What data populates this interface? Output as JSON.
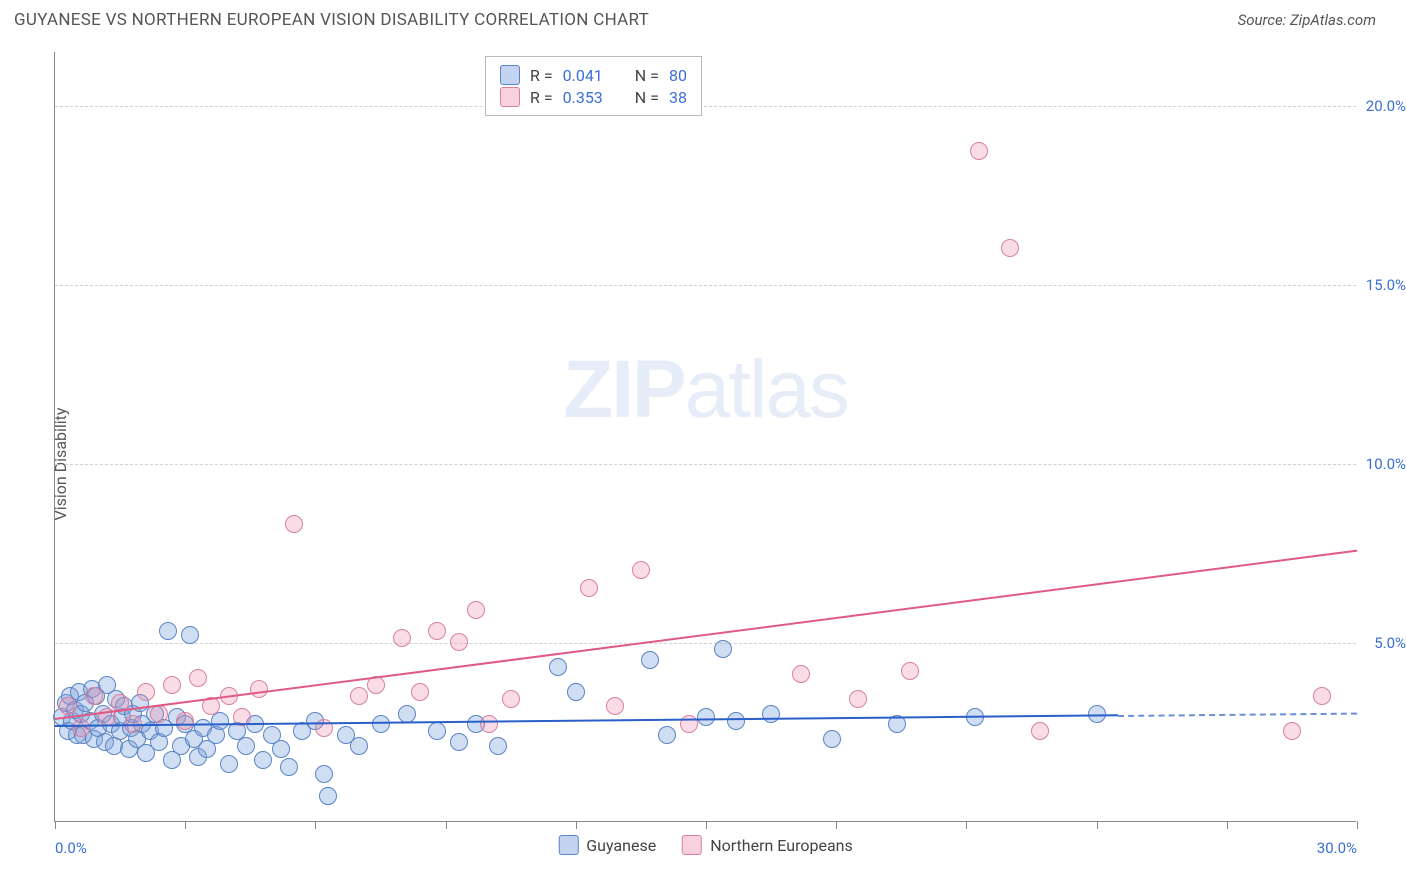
{
  "header": {
    "title": "GUYANESE VS NORTHERN EUROPEAN VISION DISABILITY CORRELATION CHART",
    "source": "Source: ZipAtlas.com"
  },
  "chart": {
    "type": "scatter",
    "ylabel": "Vision Disability",
    "watermark_bold": "ZIP",
    "watermark_light": "atlas",
    "background_color": "#ffffff",
    "grid_color": "#d0d0d0",
    "axis_color": "#888888",
    "label_color": "#555555",
    "value_color": "#3a6fd8",
    "xlim": [
      0,
      30
    ],
    "ylim": [
      0,
      21.5
    ],
    "x_ticks": [
      0,
      3,
      6,
      9,
      12,
      15,
      18,
      21,
      24,
      27,
      30
    ],
    "x_tick_labels": {
      "0": "0.0%",
      "30": "30.0%"
    },
    "y_gridlines": [
      5,
      10,
      15,
      20
    ],
    "y_tick_labels": {
      "5": "5.0%",
      "10": "10.0%",
      "15": "15.0%",
      "20": "20.0%"
    },
    "ytick_fontsize": 15,
    "xtick_fontsize": 15,
    "title_fontsize": 17,
    "label_fontsize": 16,
    "marker_size": 18,
    "marker_opacity_a": 0.35,
    "marker_opacity_b": 0.3,
    "line_width": 2,
    "series": [
      {
        "key": "a",
        "name": "Guyanese",
        "fill_color": "#78a0dc",
        "stroke_color": "#5a84c4",
        "line_color": "#2a5fc8",
        "R": "0.041",
        "N": "80",
        "trend": {
          "x1": 0,
          "y1": 2.7,
          "x2": 24.5,
          "y2": 3.0,
          "ext_x2": 30
        },
        "points": [
          [
            0.15,
            2.9
          ],
          [
            0.25,
            3.3
          ],
          [
            0.3,
            2.5
          ],
          [
            0.35,
            3.5
          ],
          [
            0.4,
            2.8
          ],
          [
            0.45,
            3.1
          ],
          [
            0.5,
            2.4
          ],
          [
            0.55,
            3.6
          ],
          [
            0.6,
            3.0
          ],
          [
            0.65,
            2.4
          ],
          [
            0.7,
            3.3
          ],
          [
            0.8,
            2.8
          ],
          [
            0.85,
            3.7
          ],
          [
            0.9,
            2.3
          ],
          [
            0.95,
            3.5
          ],
          [
            1.0,
            2.6
          ],
          [
            1.1,
            3.0
          ],
          [
            1.15,
            2.2
          ],
          [
            1.2,
            3.8
          ],
          [
            1.3,
            2.7
          ],
          [
            1.35,
            2.1
          ],
          [
            1.4,
            3.4
          ],
          [
            1.5,
            2.5
          ],
          [
            1.55,
            2.9
          ],
          [
            1.6,
            3.2
          ],
          [
            1.7,
            2.0
          ],
          [
            1.75,
            2.6
          ],
          [
            1.8,
            3.0
          ],
          [
            1.9,
            2.3
          ],
          [
            1.95,
            3.3
          ],
          [
            2.0,
            2.7
          ],
          [
            2.1,
            1.9
          ],
          [
            2.2,
            2.5
          ],
          [
            2.3,
            3.0
          ],
          [
            2.4,
            2.2
          ],
          [
            2.5,
            2.6
          ],
          [
            2.6,
            5.3
          ],
          [
            2.7,
            1.7
          ],
          [
            2.8,
            2.9
          ],
          [
            2.9,
            2.1
          ],
          [
            3.0,
            2.7
          ],
          [
            3.1,
            5.2
          ],
          [
            3.2,
            2.3
          ],
          [
            3.3,
            1.8
          ],
          [
            3.4,
            2.6
          ],
          [
            3.5,
            2.0
          ],
          [
            3.7,
            2.4
          ],
          [
            3.8,
            2.8
          ],
          [
            4.0,
            1.6
          ],
          [
            4.2,
            2.5
          ],
          [
            4.4,
            2.1
          ],
          [
            4.6,
            2.7
          ],
          [
            4.8,
            1.7
          ],
          [
            5.0,
            2.4
          ],
          [
            5.2,
            2.0
          ],
          [
            5.4,
            1.5
          ],
          [
            5.7,
            2.5
          ],
          [
            6.0,
            2.8
          ],
          [
            6.2,
            1.3
          ],
          [
            6.3,
            0.7
          ],
          [
            6.7,
            2.4
          ],
          [
            7.0,
            2.1
          ],
          [
            7.5,
            2.7
          ],
          [
            8.1,
            3.0
          ],
          [
            8.8,
            2.5
          ],
          [
            9.3,
            2.2
          ],
          [
            9.7,
            2.7
          ],
          [
            10.2,
            2.1
          ],
          [
            11.6,
            4.3
          ],
          [
            12.0,
            3.6
          ],
          [
            13.7,
            4.5
          ],
          [
            14.1,
            2.4
          ],
          [
            15.0,
            2.9
          ],
          [
            15.4,
            4.8
          ],
          [
            15.7,
            2.8
          ],
          [
            16.5,
            3.0
          ],
          [
            17.9,
            2.3
          ],
          [
            19.4,
            2.7
          ],
          [
            21.2,
            2.9
          ],
          [
            24.0,
            3.0
          ]
        ]
      },
      {
        "key": "b",
        "name": "Northern Europeans",
        "fill_color": "#eb8caa",
        "stroke_color": "#d980a0",
        "line_color": "#e05a85",
        "R": "0.353",
        "N": "38",
        "trend": {
          "x1": 0,
          "y1": 2.9,
          "x2": 30,
          "y2": 7.6
        },
        "points": [
          [
            0.3,
            3.2
          ],
          [
            0.6,
            2.6
          ],
          [
            0.9,
            3.5
          ],
          [
            1.2,
            2.9
          ],
          [
            1.5,
            3.3
          ],
          [
            1.8,
            2.7
          ],
          [
            2.1,
            3.6
          ],
          [
            2.4,
            3.0
          ],
          [
            2.7,
            3.8
          ],
          [
            3.0,
            2.8
          ],
          [
            3.3,
            4.0
          ],
          [
            3.6,
            3.2
          ],
          [
            4.0,
            3.5
          ],
          [
            4.3,
            2.9
          ],
          [
            4.7,
            3.7
          ],
          [
            5.5,
            8.3
          ],
          [
            6.2,
            2.6
          ],
          [
            7.0,
            3.5
          ],
          [
            7.4,
            3.8
          ],
          [
            8.0,
            5.1
          ],
          [
            8.4,
            3.6
          ],
          [
            8.8,
            5.3
          ],
          [
            9.3,
            5.0
          ],
          [
            9.7,
            5.9
          ],
          [
            10.0,
            2.7
          ],
          [
            10.5,
            3.4
          ],
          [
            12.3,
            6.5
          ],
          [
            12.9,
            3.2
          ],
          [
            13.5,
            7.0
          ],
          [
            14.6,
            2.7
          ],
          [
            17.2,
            4.1
          ],
          [
            18.5,
            3.4
          ],
          [
            19.7,
            4.2
          ],
          [
            21.3,
            18.7
          ],
          [
            22.0,
            16.0
          ],
          [
            22.7,
            2.5
          ],
          [
            28.5,
            2.5
          ],
          [
            29.2,
            3.5
          ]
        ]
      }
    ],
    "legend_top": {
      "R_label": "R =",
      "N_label": "N ="
    },
    "legend_bottom_order": [
      "a",
      "b"
    ]
  }
}
